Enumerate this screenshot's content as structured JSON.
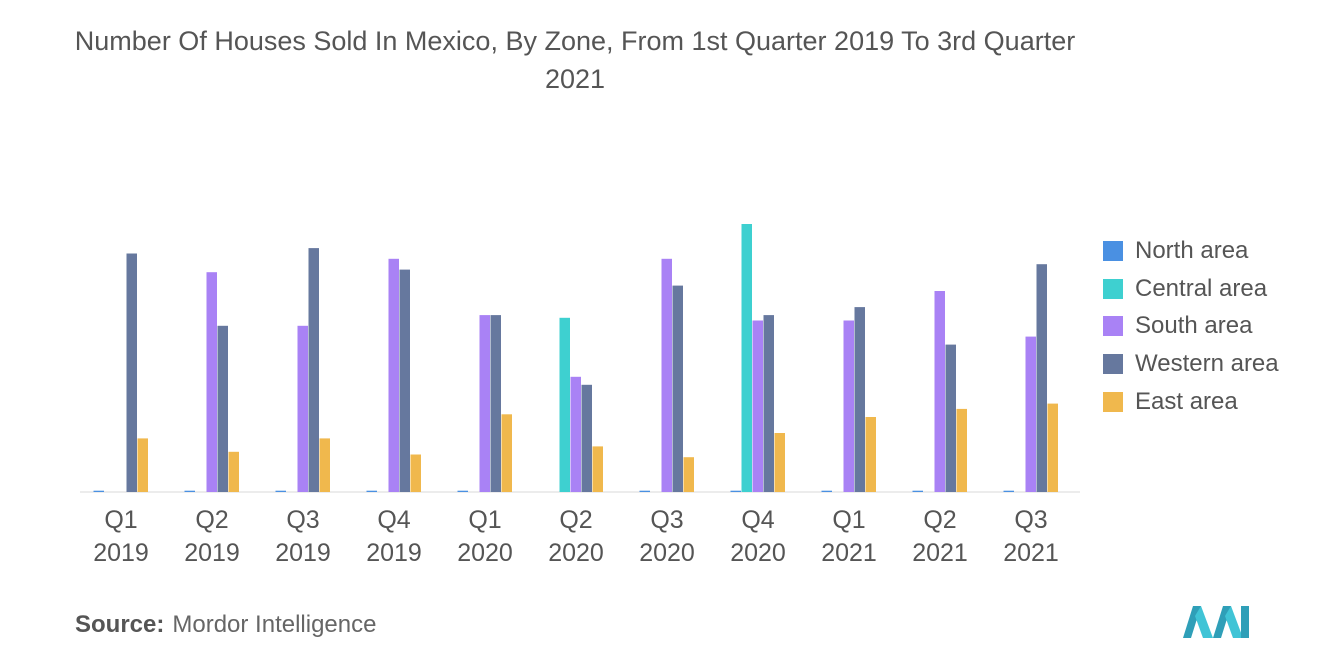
{
  "chart_data": {
    "type": "bar",
    "title": "Number Of Houses Sold In Mexico, By Zone, From 1st Quarter 2019 To 3rd Quarter 2021",
    "categories": [
      [
        "Q1",
        "2019"
      ],
      [
        "Q2",
        "2019"
      ],
      [
        "Q3",
        "2019"
      ],
      [
        "Q4",
        "2019"
      ],
      [
        "Q1",
        "2020"
      ],
      [
        "Q2",
        "2020"
      ],
      [
        "Q3",
        "2020"
      ],
      [
        "Q4",
        "2020"
      ],
      [
        "Q1",
        "2021"
      ],
      [
        "Q2",
        "2021"
      ],
      [
        "Q3",
        "2021"
      ]
    ],
    "series": [
      {
        "name": "North area",
        "color": "#4a90e2",
        "values": [
          0.5,
          0.5,
          0.5,
          0.5,
          0.5,
          0,
          0.5,
          0.5,
          0.5,
          0.5,
          0.5
        ]
      },
      {
        "name": "Central area",
        "color": "#3ed0d0",
        "values": [
          0,
          0,
          0,
          0,
          0,
          65,
          0,
          100,
          0,
          0,
          0
        ]
      },
      {
        "name": "South area",
        "color": "#a982f5",
        "values": [
          0,
          82,
          62,
          87,
          66,
          43,
          87,
          64,
          64,
          75,
          58
        ]
      },
      {
        "name": "Western area",
        "color": "#66789e",
        "values": [
          89,
          62,
          91,
          83,
          66,
          40,
          77,
          66,
          69,
          55,
          85
        ]
      },
      {
        "name": "East area",
        "color": "#f0b84d",
        "values": [
          20,
          15,
          20,
          14,
          29,
          17,
          13,
          22,
          28,
          31,
          33
        ]
      }
    ],
    "ylim": [
      0,
      100
    ],
    "grid": false,
    "y_axis_visible": false,
    "legend_position": "right"
  },
  "source": {
    "prefix": "Source:",
    "text": "Mordor Intelligence"
  }
}
